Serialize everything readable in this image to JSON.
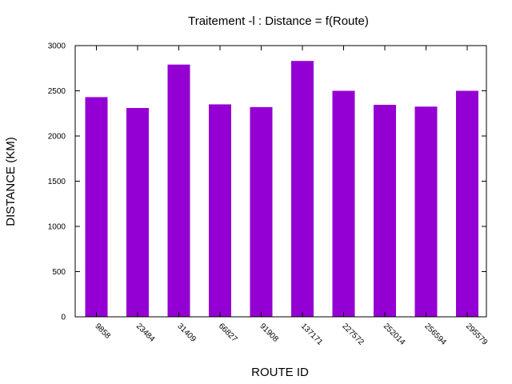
{
  "chart_data": {
    "type": "bar",
    "title": "Traitement -l : Distance = f(Route)",
    "xlabel": "ROUTE ID",
    "ylabel": "DISTANCE (KM)",
    "categories": [
      "9858",
      "23484",
      "31409",
      "66827",
      "91908",
      "137171",
      "227572",
      "252014",
      "256594",
      "295579"
    ],
    "values": [
      2430,
      2310,
      2790,
      2350,
      2320,
      2830,
      2500,
      2345,
      2325,
      2500
    ],
    "ylim": [
      0,
      3000
    ],
    "yticks": [
      "0",
      "500",
      "1000",
      "1500",
      "2000",
      "2500",
      "3000"
    ],
    "grid": false,
    "legend": "none",
    "bar_color": "#9400d3"
  }
}
